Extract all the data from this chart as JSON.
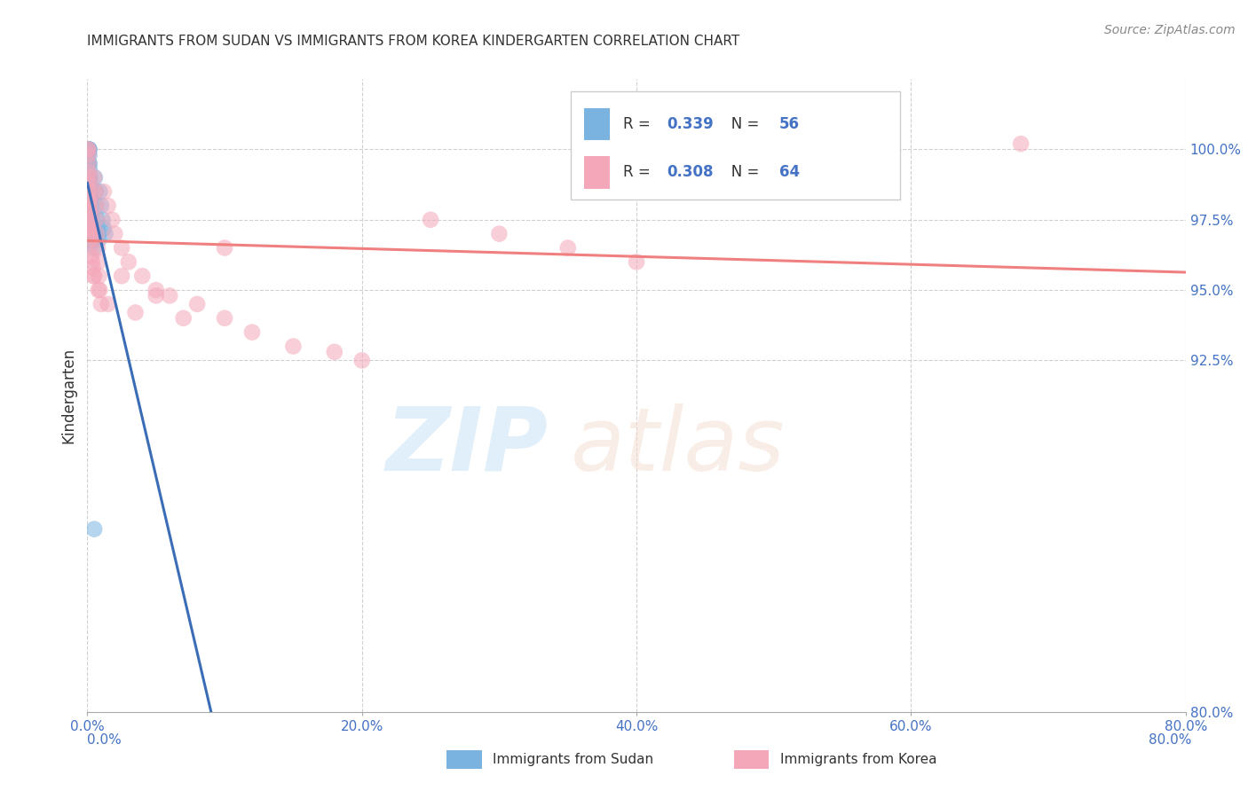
{
  "title": "IMMIGRANTS FROM SUDAN VS IMMIGRANTS FROM KOREA KINDERGARTEN CORRELATION CHART",
  "source": "Source: ZipAtlas.com",
  "ylabel": "Kindergarten",
  "x_tick_labels": [
    "0.0%",
    "",
    "",
    "",
    "",
    "",
    "",
    "",
    "",
    "",
    "",
    "20.0%",
    "",
    "",
    "",
    "",
    "",
    "",
    "",
    "",
    "",
    "",
    "40.0%",
    "",
    "",
    "",
    "",
    "",
    "",
    "",
    "",
    "",
    "",
    "60.0%",
    "",
    "",
    "",
    "",
    "",
    "",
    "",
    "",
    "",
    "",
    "80.0%"
  ],
  "y_tick_labels_right": [
    "80.0%",
    "92.5%",
    "95.0%",
    "97.5%",
    "100.0%"
  ],
  "y_tick_positions": [
    80.0,
    92.5,
    95.0,
    97.5,
    100.0
  ],
  "xlim": [
    0.0,
    80.0
  ],
  "ylim": [
    80.0,
    102.5
  ],
  "sudan_R": 0.339,
  "sudan_N": 56,
  "korea_R": 0.308,
  "korea_N": 64,
  "sudan_color": "#7ab3e0",
  "korea_color": "#f4a7b9",
  "sudan_line_color": "#3a6db5",
  "korea_line_color": "#f08080",
  "legend_label_sudan": "Immigrants from Sudan",
  "legend_label_korea": "Immigrants from Korea",
  "background_color": "#ffffff",
  "grid_color": "#d0d0d0",
  "sudan_x": [
    0.05,
    0.06,
    0.07,
    0.08,
    0.09,
    0.1,
    0.11,
    0.12,
    0.13,
    0.14,
    0.15,
    0.16,
    0.17,
    0.18,
    0.2,
    0.22,
    0.25,
    0.28,
    0.3,
    0.35,
    0.4,
    0.45,
    0.5,
    0.55,
    0.6,
    0.65,
    0.7,
    0.75,
    0.8,
    0.85,
    0.9,
    1.0,
    1.1,
    1.2,
    1.3,
    0.05,
    0.06,
    0.07,
    0.08,
    0.09,
    0.1,
    0.12,
    0.15,
    0.18,
    0.2,
    0.25,
    0.3,
    0.05,
    0.07,
    0.08,
    0.06,
    0.1,
    0.12,
    0.15,
    0.2,
    0.5
  ],
  "sudan_y": [
    100.0,
    100.0,
    100.0,
    100.0,
    100.0,
    100.0,
    100.0,
    100.0,
    100.0,
    99.8,
    99.5,
    99.3,
    99.0,
    98.8,
    98.5,
    98.2,
    98.0,
    97.7,
    97.5,
    97.2,
    97.0,
    96.8,
    96.5,
    99.0,
    98.5,
    98.0,
    97.5,
    97.2,
    97.0,
    96.8,
    98.5,
    98.0,
    97.5,
    97.2,
    97.0,
    99.8,
    99.5,
    99.2,
    99.0,
    98.7,
    98.5,
    98.2,
    97.8,
    97.5,
    97.2,
    97.0,
    96.7,
    97.5,
    97.2,
    97.0,
    97.8,
    97.5,
    99.5,
    99.0,
    98.5,
    86.5
  ],
  "korea_x": [
    0.05,
    0.06,
    0.07,
    0.08,
    0.09,
    0.1,
    0.11,
    0.12,
    0.13,
    0.14,
    0.15,
    0.18,
    0.2,
    0.22,
    0.25,
    0.28,
    0.3,
    0.35,
    0.4,
    0.45,
    0.5,
    0.55,
    0.6,
    0.65,
    0.7,
    0.75,
    0.8,
    0.85,
    0.9,
    1.0,
    1.2,
    1.5,
    1.8,
    2.0,
    2.5,
    3.0,
    4.0,
    5.0,
    6.0,
    8.0,
    10.0,
    12.0,
    15.0,
    18.0,
    20.0,
    25.0,
    30.0,
    35.0,
    40.0,
    68.0,
    0.08,
    0.1,
    0.15,
    0.2,
    0.25,
    0.3,
    0.5,
    0.8,
    1.5,
    2.5,
    3.5,
    5.0,
    7.0,
    10.0
  ],
  "korea_y": [
    100.0,
    100.0,
    99.8,
    99.5,
    99.2,
    99.0,
    98.8,
    98.5,
    98.2,
    98.0,
    97.8,
    97.5,
    97.2,
    97.0,
    96.8,
    96.5,
    96.2,
    96.0,
    95.8,
    95.5,
    99.0,
    98.5,
    98.0,
    97.5,
    97.0,
    96.5,
    96.0,
    95.5,
    95.0,
    94.5,
    98.5,
    98.0,
    97.5,
    97.0,
    96.5,
    96.0,
    95.5,
    95.0,
    94.8,
    94.5,
    94.0,
    93.5,
    93.0,
    92.8,
    92.5,
    97.5,
    97.0,
    96.5,
    96.0,
    100.2,
    98.5,
    98.2,
    97.8,
    97.5,
    97.2,
    97.0,
    95.5,
    95.0,
    94.5,
    95.5,
    94.2,
    94.8,
    94.0,
    96.5
  ]
}
